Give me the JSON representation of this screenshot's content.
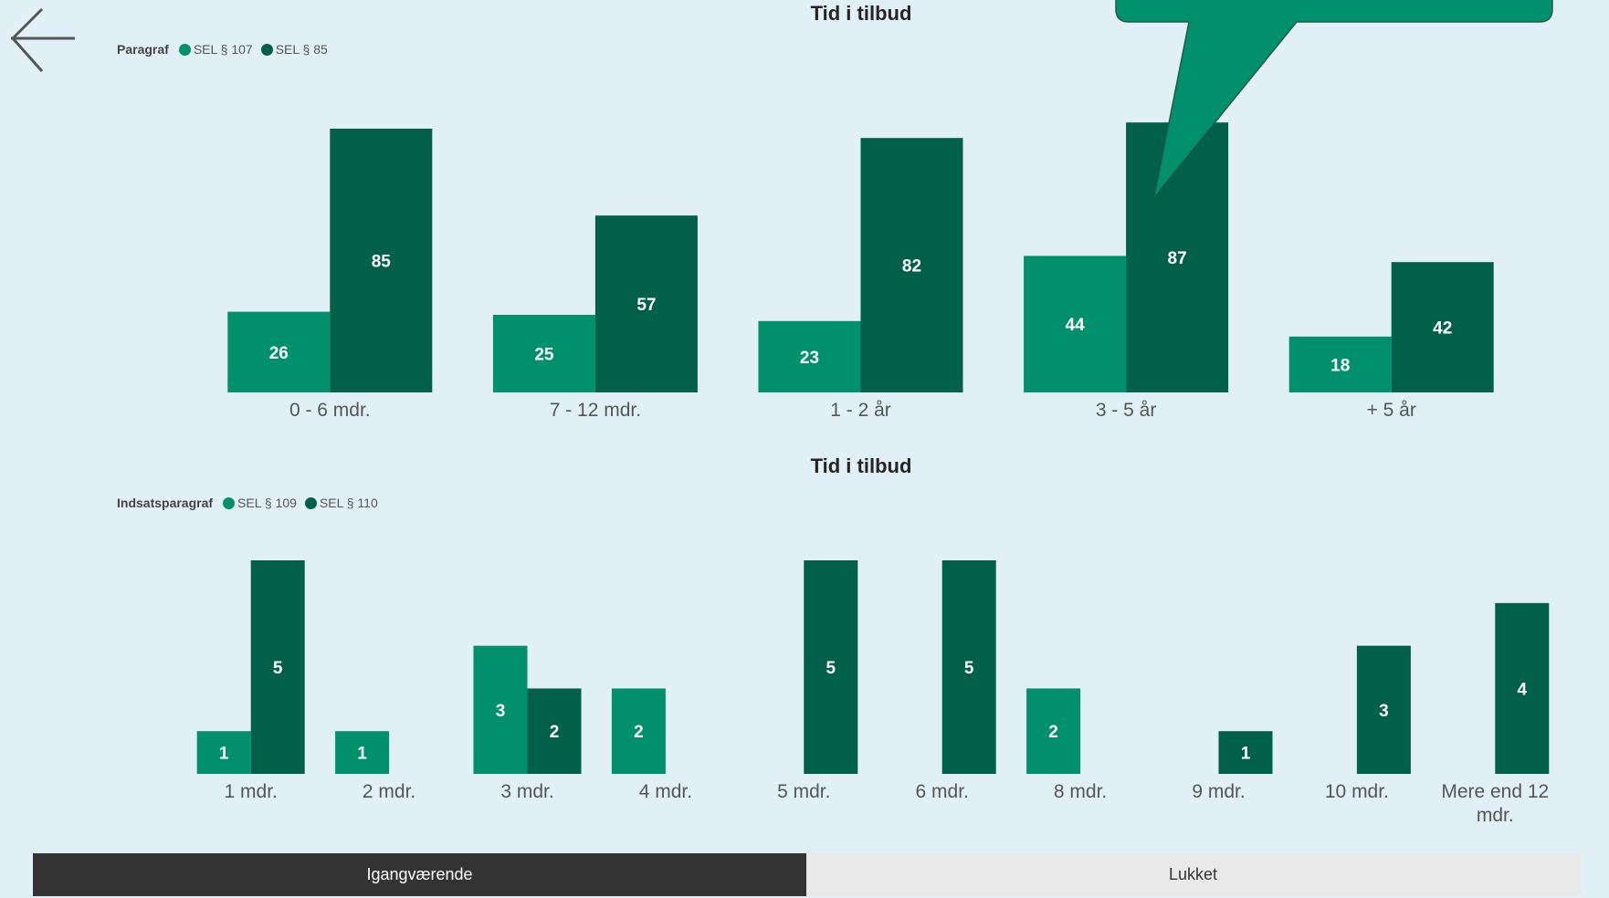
{
  "colors": {
    "series_light": "#00906e",
    "series_dark": "#00604a",
    "callout": "#00906e"
  },
  "nav": {
    "back_icon": "arrow-left-icon"
  },
  "tabs": [
    {
      "label": "Igangværende",
      "active": true
    },
    {
      "label": "Lukket",
      "active": false
    }
  ],
  "chart_data": [
    {
      "type": "bar",
      "title": "Tid i tilbud",
      "legend_title": "Paragraf",
      "legend_placement": "top-left",
      "categories": [
        "0 - 6 mdr.",
        "7 - 12 mdr.",
        "1 - 2 år",
        "3 - 5 år",
        "+ 5 år"
      ],
      "series": [
        {
          "name": "SEL § 107",
          "values": [
            26,
            25,
            23,
            44,
            18
          ]
        },
        {
          "name": "SEL § 85",
          "values": [
            85,
            57,
            82,
            87,
            42
          ]
        }
      ],
      "ylim": [
        0,
        90
      ],
      "grid": false
    },
    {
      "type": "bar",
      "title": "Tid i tilbud",
      "legend_title": "Indsatsparagraf",
      "legend_placement": "top-left",
      "categories": [
        "1 mdr.",
        "2 mdr.",
        "3 mdr.",
        "4 mdr.",
        "5 mdr.",
        "6 mdr.",
        "8 mdr.",
        "9 mdr.",
        "10 mdr.",
        "Mere end 12 mdr."
      ],
      "series": [
        {
          "name": "SEL § 109",
          "values": [
            1,
            1,
            3,
            2,
            null,
            null,
            2,
            null,
            null,
            null
          ]
        },
        {
          "name": "SEL § 110",
          "values": [
            5,
            null,
            2,
            null,
            5,
            5,
            null,
            1,
            3,
            4
          ]
        }
      ],
      "ylim": [
        0,
        5
      ],
      "grid": false
    }
  ]
}
